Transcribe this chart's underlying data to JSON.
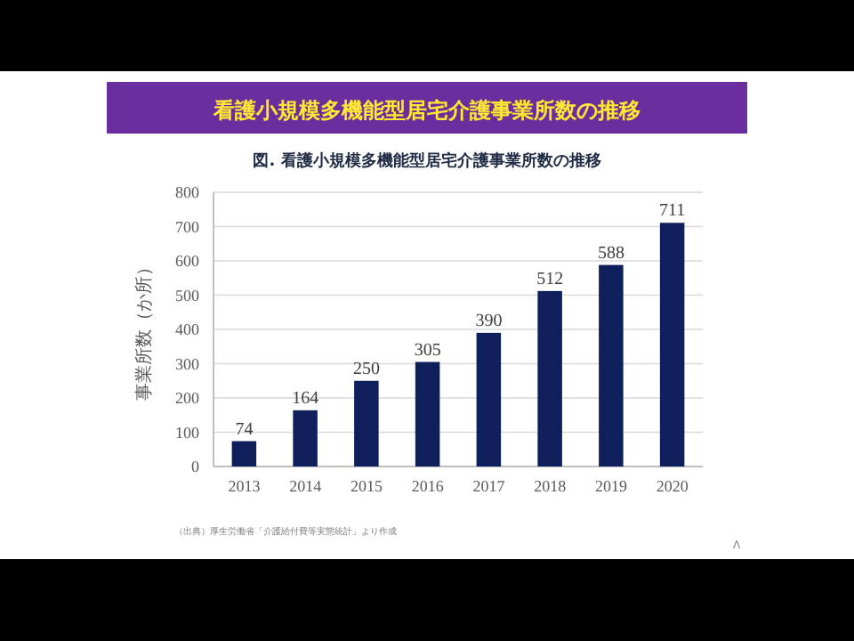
{
  "chart_data": {
    "type": "bar",
    "title": "看護小規模多機能型居宅介護事業所数の推移",
    "subtitle": "図. 看護小規模多機能型居宅介護事業所数の推移",
    "ylabel": "事業所数（か所）",
    "categories": [
      "2013",
      "2014",
      "2015",
      "2016",
      "2017",
      "2018",
      "2019",
      "2020"
    ],
    "values": [
      74,
      164,
      250,
      305,
      390,
      512,
      588,
      711
    ],
    "color": "#0f1f5c",
    "ylim": [
      0,
      800
    ],
    "yticks": [
      0,
      100,
      200,
      300,
      400,
      500,
      600,
      700,
      800
    ],
    "grid": "y",
    "data_labels": true,
    "annotations": [
      "（出典）厚生労働省「介護給付費等実態統計」より作成",
      "Λ"
    ]
  }
}
